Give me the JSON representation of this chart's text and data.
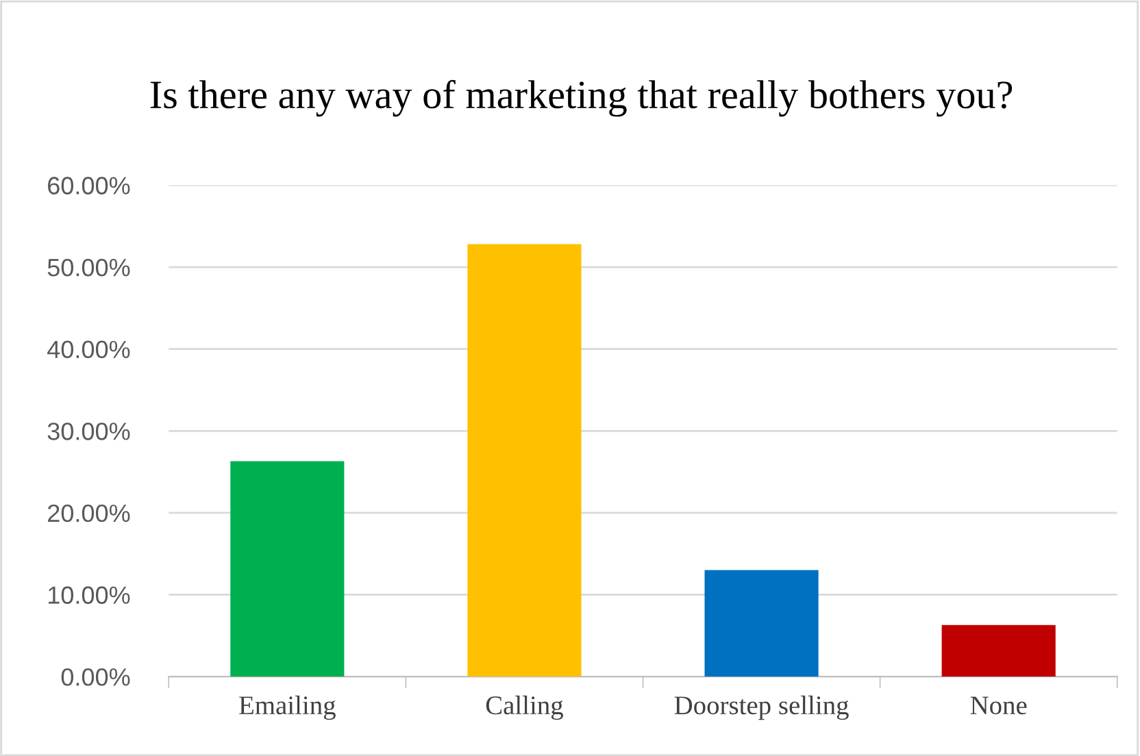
{
  "chart_data": {
    "type": "bar",
    "title": "Is there any way of marketing that really bothers you?",
    "categories": [
      "Emailing",
      "Calling",
      "Doorstep selling",
      "None"
    ],
    "values": [
      26.3,
      52.8,
      13.0,
      6.3
    ],
    "colors": [
      "#00b050",
      "#ffc000",
      "#0070c0",
      "#c00000"
    ],
    "ylim": [
      0,
      60
    ],
    "yticks": [
      {
        "value": 0,
        "label": "0.00%"
      },
      {
        "value": 10,
        "label": "10.00%"
      },
      {
        "value": 20,
        "label": "20.00%"
      },
      {
        "value": 30,
        "label": "30.00%"
      },
      {
        "value": 40,
        "label": "40.00%"
      },
      {
        "value": 50,
        "label": "50.00%"
      },
      {
        "value": 60,
        "label": "60.00%"
      }
    ],
    "grid": "y",
    "legend": false
  }
}
